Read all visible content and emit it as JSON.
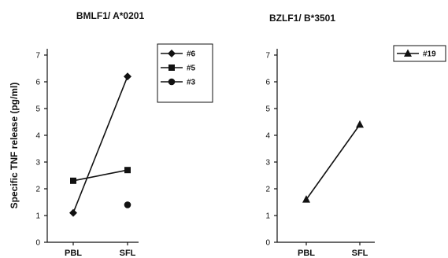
{
  "ylabel": "Specific TNF release (pg/ml)",
  "chart_data": [
    {
      "type": "line",
      "title": "BMLF1/ A*0201",
      "categories": [
        "PBL",
        "SFL"
      ],
      "y_ticks": [
        "0",
        "1",
        "2",
        "3",
        "4",
        "5",
        "6",
        "7"
      ],
      "ylim": [
        0,
        7
      ],
      "legend_position": "top-right",
      "series": [
        {
          "name": "#6",
          "marker": "diamond",
          "values": [
            1.1,
            6.2
          ]
        },
        {
          "name": "#5",
          "marker": "square",
          "values": [
            2.3,
            2.7
          ]
        },
        {
          "name": "#3",
          "marker": "circle",
          "values": [
            null,
            1.4
          ]
        }
      ]
    },
    {
      "type": "line",
      "title": "BZLF1/ B*3501",
      "categories": [
        "PBL",
        "SFL"
      ],
      "y_ticks": [
        "0",
        "1",
        "2",
        "3",
        "4",
        "5",
        "6",
        "7"
      ],
      "ylim": [
        0,
        7
      ],
      "legend_position": "top-right",
      "series": [
        {
          "name": "#19",
          "marker": "triangle",
          "values": [
            1.6,
            4.4
          ]
        }
      ]
    }
  ]
}
